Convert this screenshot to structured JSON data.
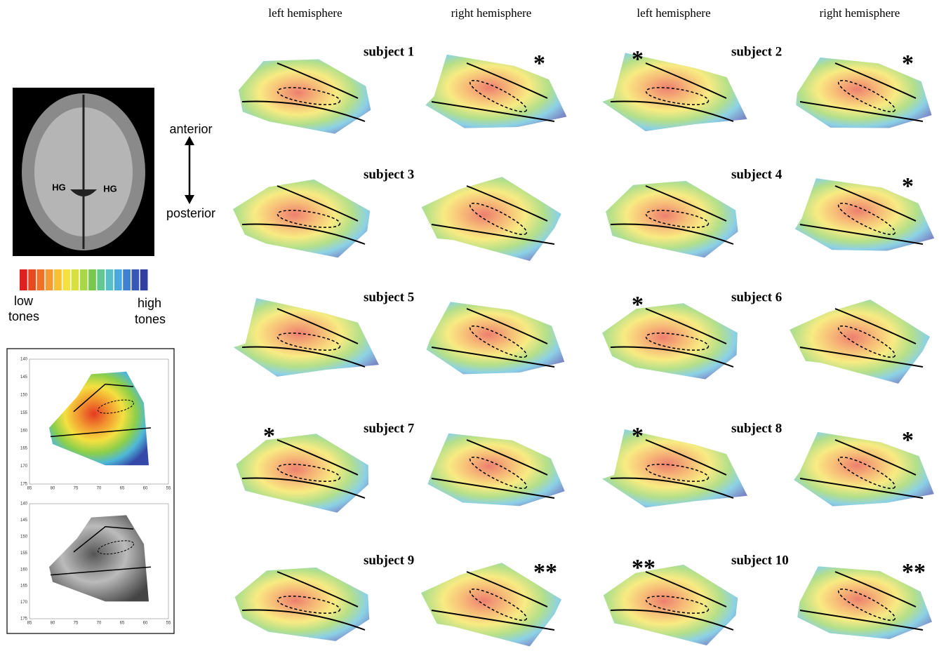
{
  "column_headers": [
    "left hemisphere",
    "right hemisphere",
    "left hemisphere",
    "right hemisphere"
  ],
  "subjects": [
    {
      "label": "subject 1",
      "right_mark": "*"
    },
    {
      "label": "subject 2",
      "left_mark": "*",
      "right_mark": "*"
    },
    {
      "label": "subject 3"
    },
    {
      "label": "subject 4",
      "right_mark": "*"
    },
    {
      "label": "subject 5"
    },
    {
      "label": "subject 6",
      "left_mark": "*"
    },
    {
      "label": "subject 7",
      "left_mark": "*"
    },
    {
      "label": "subject 8",
      "left_mark": "*",
      "right_mark": "*"
    },
    {
      "label": "subject 9",
      "right_mark": "**"
    },
    {
      "label": "subject 10",
      "left_mark": "**",
      "right_mark": "**"
    }
  ],
  "brain_labels": [
    "HG",
    "HG"
  ],
  "orientation": [
    "anterior",
    "posterior"
  ],
  "colorbar": {
    "colors": [
      "#e02020",
      "#e84a20",
      "#f07028",
      "#f59a30",
      "#f8c030",
      "#f6e040",
      "#d8e040",
      "#a8d848",
      "#78c850",
      "#60c890",
      "#58c0c8",
      "#48a8e0",
      "#4080d0",
      "#3858b8",
      "#3040a0"
    ],
    "low_label": [
      "low",
      "tones"
    ],
    "high_label": [
      "high",
      "tones"
    ]
  },
  "inset": {
    "yticks": [
      140,
      145,
      150,
      155,
      160,
      165,
      170,
      175
    ],
    "xticks": [
      85,
      80,
      75,
      70,
      65,
      60,
      55
    ]
  }
}
